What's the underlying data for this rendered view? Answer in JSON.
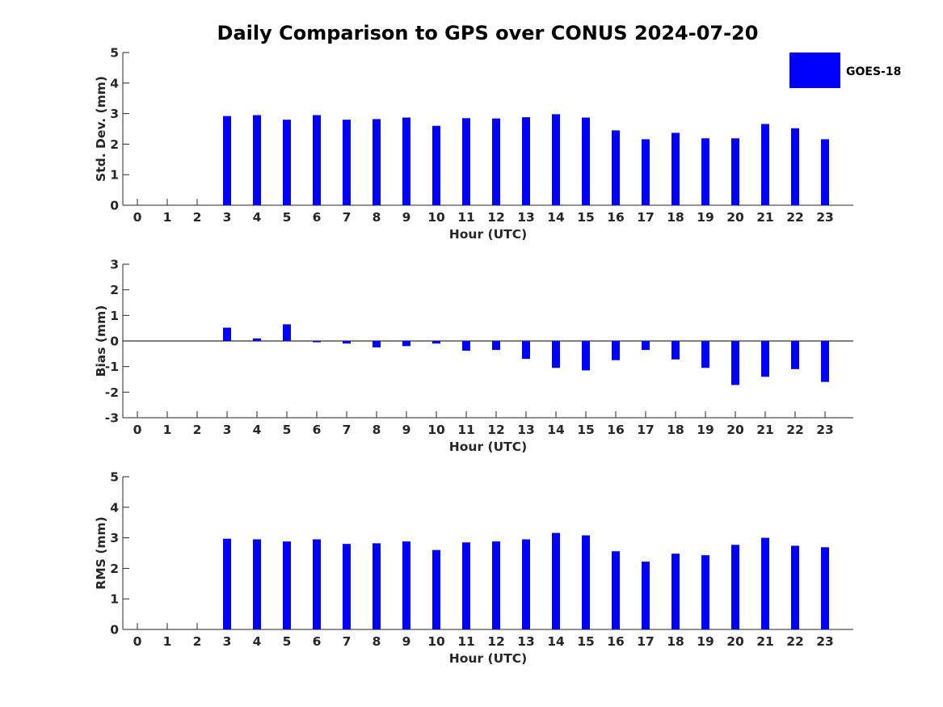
{
  "title": "Daily Comparison to GPS over CONUS 2024-07-20",
  "legend": {
    "series_name": "GOES-18",
    "color": "#0000FF"
  },
  "chart_data": [
    {
      "type": "bar",
      "name": "std",
      "title": "Daily Comparison to GPS over CONUS 2024-07-20",
      "xlabel": "Hour (UTC)",
      "ylabel": "Std. Dev. (mm)",
      "ylim": [
        0,
        5
      ],
      "yticks": [
        0,
        1,
        2,
        3,
        4,
        5
      ],
      "categories": [
        0,
        1,
        2,
        3,
        4,
        5,
        6,
        7,
        8,
        9,
        10,
        11,
        12,
        13,
        14,
        15,
        16,
        17,
        18,
        19,
        20,
        21,
        22,
        23
      ],
      "series": [
        {
          "name": "GOES-18",
          "color": "#0000FF",
          "values": [
            null,
            null,
            null,
            2.92,
            2.95,
            2.8,
            2.95,
            2.8,
            2.82,
            2.87,
            2.6,
            2.85,
            2.84,
            2.88,
            2.98,
            2.87,
            2.45,
            2.16,
            2.37,
            2.19,
            2.19,
            2.66,
            2.52,
            2.16
          ]
        }
      ]
    },
    {
      "type": "bar",
      "name": "bias",
      "xlabel": "Hour (UTC)",
      "ylabel": "Bias (mm)",
      "ylim": [
        -3,
        3
      ],
      "yticks": [
        -3,
        -2,
        -1,
        0,
        1,
        2,
        3
      ],
      "categories": [
        0,
        1,
        2,
        3,
        4,
        5,
        6,
        7,
        8,
        9,
        10,
        11,
        12,
        13,
        14,
        15,
        16,
        17,
        18,
        19,
        20,
        21,
        22,
        23
      ],
      "series": [
        {
          "name": "GOES-18",
          "color": "#0000FF",
          "values": [
            null,
            null,
            null,
            0.52,
            0.1,
            0.65,
            -0.05,
            -0.1,
            -0.25,
            -0.2,
            -0.1,
            -0.38,
            -0.35,
            -0.7,
            -1.05,
            -1.15,
            -0.75,
            -0.35,
            -0.72,
            -1.05,
            -1.72,
            -1.4,
            -1.1,
            -1.6
          ]
        }
      ]
    },
    {
      "type": "bar",
      "name": "rms",
      "xlabel": "Hour (UTC)",
      "ylabel": "RMS (mm)",
      "ylim": [
        0,
        5
      ],
      "yticks": [
        0,
        1,
        2,
        3,
        4,
        5
      ],
      "categories": [
        0,
        1,
        2,
        3,
        4,
        5,
        6,
        7,
        8,
        9,
        10,
        11,
        12,
        13,
        14,
        15,
        16,
        17,
        18,
        19,
        20,
        21,
        22,
        23
      ],
      "series": [
        {
          "name": "GOES-18",
          "color": "#0000FF",
          "values": [
            null,
            null,
            null,
            2.97,
            2.95,
            2.88,
            2.95,
            2.8,
            2.82,
            2.88,
            2.6,
            2.85,
            2.88,
            2.95,
            3.16,
            3.08,
            2.56,
            2.22,
            2.48,
            2.43,
            2.77,
            3.0,
            2.74,
            2.69
          ]
        }
      ]
    }
  ]
}
